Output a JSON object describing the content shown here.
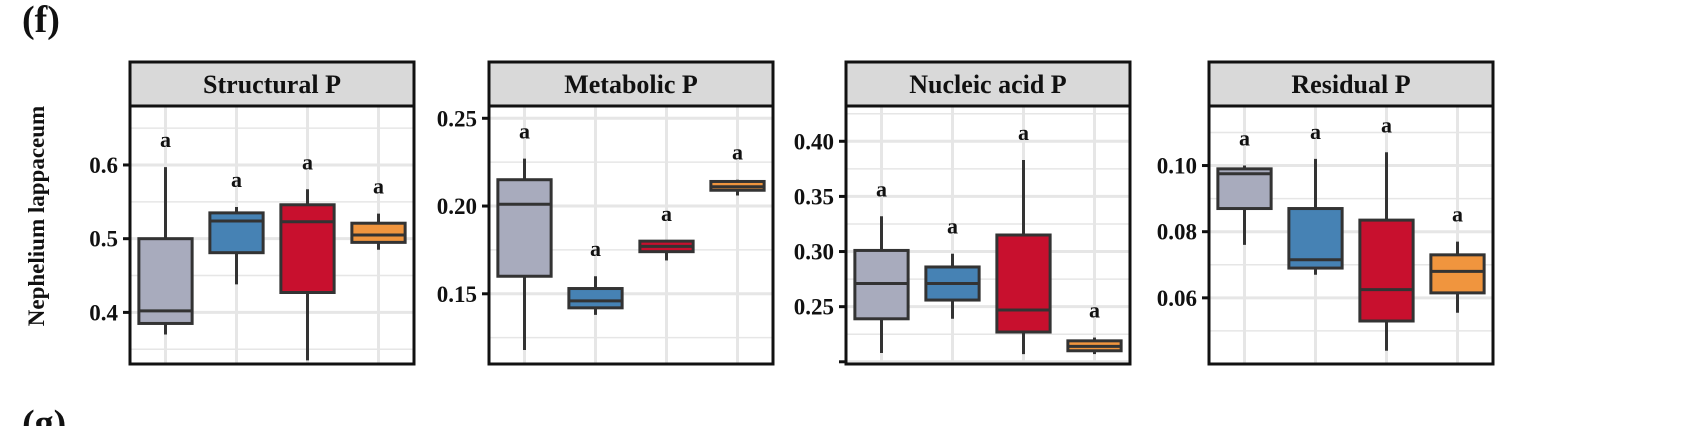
{
  "figure": {
    "panel_label": "(f)",
    "ylabel": "Nephelium lappaceum",
    "next_panel_label": "(g)"
  },
  "colors": {
    "strip_fill": "#d9d9d9",
    "grid": "#e6e6e6",
    "box_outline": "#333333",
    "group_colors": [
      "#a8abbd",
      "#4682b4",
      "#c8102e",
      "#f0953e"
    ]
  },
  "chart_data": [
    {
      "type": "box",
      "title": "Structural P",
      "ylim": [
        0.33,
        0.68
      ],
      "yticks": [
        0.4,
        0.5,
        0.6
      ],
      "ytick_labels": [
        "0.4",
        "0.5",
        "0.6"
      ],
      "grid": true,
      "series": [
        {
          "min": 0.37,
          "q1": 0.385,
          "median": 0.402,
          "q3": 0.5,
          "max": 0.597,
          "label": "a"
        },
        {
          "min": 0.438,
          "q1": 0.481,
          "median": 0.524,
          "q3": 0.535,
          "max": 0.543,
          "label": "a"
        },
        {
          "min": 0.335,
          "q1": 0.427,
          "median": 0.523,
          "q3": 0.546,
          "max": 0.567,
          "label": "a"
        },
        {
          "min": 0.485,
          "q1": 0.495,
          "median": 0.505,
          "q3": 0.521,
          "max": 0.534,
          "label": "a"
        }
      ]
    },
    {
      "type": "box",
      "title": "Metabolic P",
      "ylim": [
        0.11,
        0.257
      ],
      "yticks": [
        0.15,
        0.2,
        0.25
      ],
      "ytick_labels": [
        "0.15",
        "0.20",
        "0.25"
      ],
      "grid": true,
      "series": [
        {
          "min": 0.118,
          "q1": 0.16,
          "median": 0.201,
          "q3": 0.215,
          "max": 0.227,
          "label": "a"
        },
        {
          "min": 0.138,
          "q1": 0.142,
          "median": 0.146,
          "q3": 0.153,
          "max": 0.16,
          "label": "a"
        },
        {
          "min": 0.169,
          "q1": 0.174,
          "median": 0.177,
          "q3": 0.18,
          "max": 0.18,
          "label": "a"
        },
        {
          "min": 0.206,
          "q1": 0.209,
          "median": 0.211,
          "q3": 0.214,
          "max": 0.215,
          "label": "a"
        }
      ]
    },
    {
      "type": "box",
      "title": "Nucleic acid P",
      "ylim": [
        0.198,
        0.432
      ],
      "yticks": [
        0.2,
        0.25,
        0.3,
        0.35,
        0.4
      ],
      "ytick_labels": [
        "",
        "0.25",
        "0.30",
        "0.35",
        "0.40"
      ],
      "grid": true,
      "series": [
        {
          "min": 0.208,
          "q1": 0.239,
          "median": 0.271,
          "q3": 0.301,
          "max": 0.332,
          "label": "a"
        },
        {
          "min": 0.239,
          "q1": 0.256,
          "median": 0.271,
          "q3": 0.286,
          "max": 0.298,
          "label": "a"
        },
        {
          "min": 0.207,
          "q1": 0.227,
          "median": 0.247,
          "q3": 0.315,
          "max": 0.383,
          "label": "a"
        },
        {
          "min": 0.207,
          "q1": 0.21,
          "median": 0.214,
          "q3": 0.219,
          "max": 0.222,
          "label": "a"
        }
      ]
    },
    {
      "type": "box",
      "title": "Residual P",
      "ylim": [
        0.04,
        0.118
      ],
      "yticks": [
        0.06,
        0.08,
        0.1
      ],
      "ytick_labels": [
        "0.06",
        "0.08",
        "0.10"
      ],
      "grid": true,
      "series": [
        {
          "min": 0.076,
          "q1": 0.087,
          "median": 0.0975,
          "q3": 0.099,
          "max": 0.1,
          "label": "a"
        },
        {
          "min": 0.067,
          "q1": 0.069,
          "median": 0.0715,
          "q3": 0.087,
          "max": 0.102,
          "label": "a"
        },
        {
          "min": 0.044,
          "q1": 0.053,
          "median": 0.0625,
          "q3": 0.0835,
          "max": 0.104,
          "label": "a"
        },
        {
          "min": 0.0555,
          "q1": 0.0615,
          "median": 0.068,
          "q3": 0.073,
          "max": 0.077,
          "label": "a"
        }
      ]
    }
  ]
}
